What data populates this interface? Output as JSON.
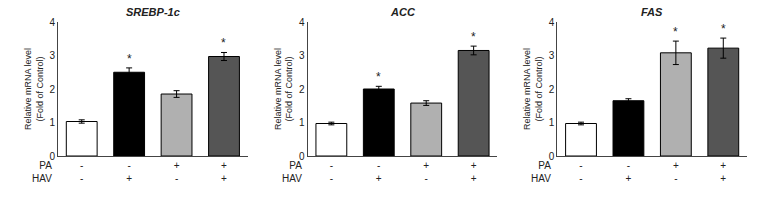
{
  "chart_data": [
    {
      "type": "bar",
      "title": "SREBP-1c",
      "categories": [
        "-\n-",
        "-\n+",
        "+\n-",
        "+\n+"
      ],
      "values": [
        1.03,
        2.5,
        1.85,
        2.97
      ],
      "errors": [
        0.05,
        0.13,
        0.1,
        0.12
      ],
      "colors": [
        "white",
        "black",
        "#b0b0b0",
        "#555555"
      ],
      "ylabel": "Relative mRNA level\n(Fold of Control)",
      "ylim": [
        0,
        4
      ],
      "yticks": [
        0,
        1,
        2,
        3,
        4
      ],
      "grid": false,
      "annotations": [
        {
          "x": 1,
          "text": "*"
        },
        {
          "x": 3,
          "text": "*"
        },
        {
          "text": "PA\nHAV"
        }
      ]
    },
    {
      "type": "bar",
      "title": "ACC",
      "categories": [
        "-\n-",
        "-\n+",
        "+\n-",
        "+\n+"
      ],
      "values": [
        0.97,
        2.0,
        1.58,
        3.15
      ],
      "errors": [
        0.04,
        0.08,
        0.07,
        0.13
      ],
      "colors": [
        "white",
        "black",
        "#b0b0b0",
        "#555555"
      ],
      "ylabel": "Relative mRNA level\n(Fold of Control)",
      "ylim": [
        0,
        4
      ],
      "yticks": [
        0,
        1,
        2,
        3,
        4
      ],
      "grid": false,
      "annotations": [
        {
          "x": 1,
          "text": "*"
        },
        {
          "x": 3,
          "text": "*"
        },
        {
          "text": "PA\nHAV"
        }
      ]
    },
    {
      "type": "bar",
      "title": "FAS",
      "categories": [
        "-\n-",
        "-\n+",
        "+\n-",
        "+\n+"
      ],
      "values": [
        0.97,
        1.65,
        3.08,
        3.22
      ],
      "errors": [
        0.04,
        0.06,
        0.35,
        0.3
      ],
      "colors": [
        "white",
        "black",
        "#b0b0b0",
        "#555555"
      ],
      "ylabel": "Relative mRNA level\n(Fold of Control)",
      "ylim": [
        0,
        4
      ],
      "yticks": [
        0,
        1,
        2,
        3,
        4
      ],
      "grid": false,
      "annotations": [
        {
          "x": 2,
          "text": "*"
        },
        {
          "x": 3,
          "text": "*"
        },
        {
          "text": "PA\nHAV"
        }
      ]
    }
  ]
}
